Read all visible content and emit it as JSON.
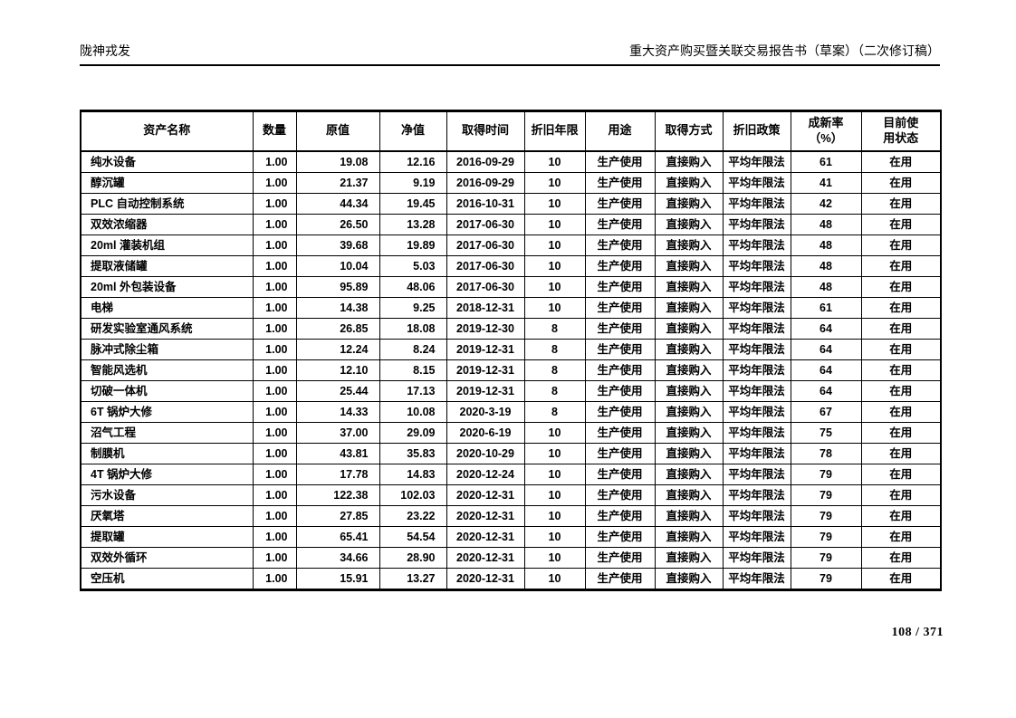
{
  "page_header": {
    "left": "陇神戎发",
    "right": "重大资产购买暨关联交易报告书（草案）（二次修订稿）"
  },
  "table": {
    "columns": [
      "资产名称",
      "数量",
      "原值",
      "净值",
      "取得时间",
      "折旧年限",
      "用途",
      "取得方式",
      "折旧政策",
      "成新率\n（%）",
      "目前使\n用状态"
    ],
    "rows": [
      [
        "纯水设备",
        "1.00",
        "19.08",
        "12.16",
        "2016-09-29",
        "10",
        "生产使用",
        "直接购入",
        "平均年限法",
        "61",
        "在用"
      ],
      [
        "醇沉罐",
        "1.00",
        "21.37",
        "9.19",
        "2016-09-29",
        "10",
        "生产使用",
        "直接购入",
        "平均年限法",
        "41",
        "在用"
      ],
      [
        "PLC 自动控制系统",
        "1.00",
        "44.34",
        "19.45",
        "2016-10-31",
        "10",
        "生产使用",
        "直接购入",
        "平均年限法",
        "42",
        "在用"
      ],
      [
        "双效浓缩器",
        "1.00",
        "26.50",
        "13.28",
        "2017-06-30",
        "10",
        "生产使用",
        "直接购入",
        "平均年限法",
        "48",
        "在用"
      ],
      [
        "20ml 灌装机组",
        "1.00",
        "39.68",
        "19.89",
        "2017-06-30",
        "10",
        "生产使用",
        "直接购入",
        "平均年限法",
        "48",
        "在用"
      ],
      [
        "提取液储罐",
        "1.00",
        "10.04",
        "5.03",
        "2017-06-30",
        "10",
        "生产使用",
        "直接购入",
        "平均年限法",
        "48",
        "在用"
      ],
      [
        "20ml 外包装设备",
        "1.00",
        "95.89",
        "48.06",
        "2017-06-30",
        "10",
        "生产使用",
        "直接购入",
        "平均年限法",
        "48",
        "在用"
      ],
      [
        "电梯",
        "1.00",
        "14.38",
        "9.25",
        "2018-12-31",
        "10",
        "生产使用",
        "直接购入",
        "平均年限法",
        "61",
        "在用"
      ],
      [
        "研发实验室通风系统",
        "1.00",
        "26.85",
        "18.08",
        "2019-12-30",
        "8",
        "生产使用",
        "直接购入",
        "平均年限法",
        "64",
        "在用"
      ],
      [
        "脉冲式除尘箱",
        "1.00",
        "12.24",
        "8.24",
        "2019-12-31",
        "8",
        "生产使用",
        "直接购入",
        "平均年限法",
        "64",
        "在用"
      ],
      [
        "智能风选机",
        "1.00",
        "12.10",
        "8.15",
        "2019-12-31",
        "8",
        "生产使用",
        "直接购入",
        "平均年限法",
        "64",
        "在用"
      ],
      [
        "切破一体机",
        "1.00",
        "25.44",
        "17.13",
        "2019-12-31",
        "8",
        "生产使用",
        "直接购入",
        "平均年限法",
        "64",
        "在用"
      ],
      [
        "6T 锅炉大修",
        "1.00",
        "14.33",
        "10.08",
        "2020-3-19",
        "8",
        "生产使用",
        "直接购入",
        "平均年限法",
        "67",
        "在用"
      ],
      [
        "沼气工程",
        "1.00",
        "37.00",
        "29.09",
        "2020-6-19",
        "10",
        "生产使用",
        "直接购入",
        "平均年限法",
        "75",
        "在用"
      ],
      [
        "制膜机",
        "1.00",
        "43.81",
        "35.83",
        "2020-10-29",
        "10",
        "生产使用",
        "直接购入",
        "平均年限法",
        "78",
        "在用"
      ],
      [
        "4T 锅炉大修",
        "1.00",
        "17.78",
        "14.83",
        "2020-12-24",
        "10",
        "生产使用",
        "直接购入",
        "平均年限法",
        "79",
        "在用"
      ],
      [
        "污水设备",
        "1.00",
        "122.38",
        "102.03",
        "2020-12-31",
        "10",
        "生产使用",
        "直接购入",
        "平均年限法",
        "79",
        "在用"
      ],
      [
        "厌氧塔",
        "1.00",
        "27.85",
        "23.22",
        "2020-12-31",
        "10",
        "生产使用",
        "直接购入",
        "平均年限法",
        "79",
        "在用"
      ],
      [
        "提取罐",
        "1.00",
        "65.41",
        "54.54",
        "2020-12-31",
        "10",
        "生产使用",
        "直接购入",
        "平均年限法",
        "79",
        "在用"
      ],
      [
        "双效外循环",
        "1.00",
        "34.66",
        "28.90",
        "2020-12-31",
        "10",
        "生产使用",
        "直接购入",
        "平均年限法",
        "79",
        "在用"
      ],
      [
        "空压机",
        "1.00",
        "15.91",
        "13.27",
        "2020-12-31",
        "10",
        "生产使用",
        "直接购入",
        "平均年限法",
        "79",
        "在用"
      ]
    ]
  },
  "footer": {
    "page_number": "108 / 371"
  }
}
